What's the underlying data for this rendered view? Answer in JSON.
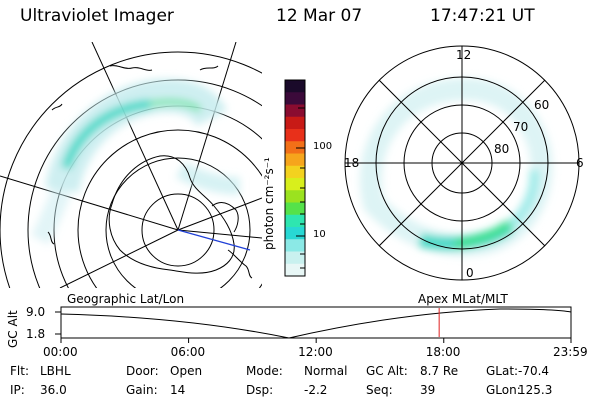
{
  "header": {
    "instrument": "Ultraviolet Imager",
    "date": "12 Mar 07",
    "time": "17:47:21 UT"
  },
  "colorbar": {
    "label": "photon cm⁻²s⁻¹",
    "ticks": [
      "100",
      "10"
    ],
    "colors": [
      "#1a0a2a",
      "#3b0a3a",
      "#8a0c30",
      "#c81a16",
      "#e8301a",
      "#f27018",
      "#f6a51c",
      "#f3d21f",
      "#d8ef1c",
      "#9be21f",
      "#55e24a",
      "#2ee6b0",
      "#28d8d4",
      "#8be9e6",
      "#c9f1ef",
      "#e8f7f6"
    ]
  },
  "polar_map": {
    "hour_labels": [
      "12",
      "6",
      "0",
      "18"
    ],
    "lat_labels": [
      "60",
      "70",
      "80"
    ]
  },
  "timeline": {
    "left_label": "Geographic Lat/Lon",
    "right_label": "Apex  MLat/MLT",
    "y_axis_label": "GC Alt",
    "y_ticks": [
      "9.0",
      "1.8"
    ],
    "x_ticks": [
      "00:00",
      "06:00",
      "12:00",
      "18:00",
      "23:59"
    ],
    "marker_time": "17:47"
  },
  "info_rows": [
    [
      {
        "k": "Flt:",
        "v": "LBHL"
      },
      {
        "k": "Door:",
        "v": "Open"
      },
      {
        "k": "Mode:",
        "v": "Normal"
      },
      {
        "k": "GC Alt:",
        "v": "8.7 Re"
      },
      {
        "k": "GLat:",
        "v": "-70.4"
      }
    ],
    [
      {
        "k": "IP:",
        "v": "36.0"
      },
      {
        "k": "Gain:",
        "v": "14"
      },
      {
        "k": "Dsp:",
        "v": "-2.2"
      },
      {
        "k": "Seq:",
        "v": "39"
      },
      {
        "k": "GLon:",
        "v": "125.3"
      }
    ]
  ],
  "accent": {
    "aurora_light": "#c6ecef",
    "aurora_mid": "#33d6c0",
    "aurora_strong": "#38e07a",
    "marker": "#e02020",
    "projection_line": "#1f3fd6"
  }
}
